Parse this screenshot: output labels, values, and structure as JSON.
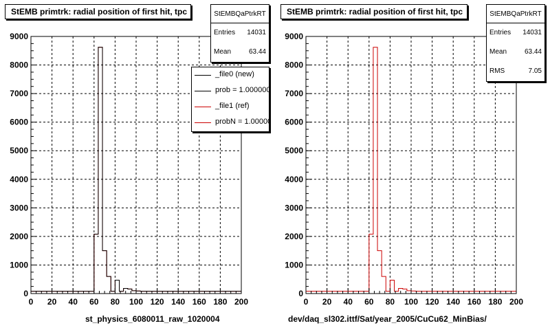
{
  "left_pad": {
    "title": "StEMB primtrk: radial position of first hit, tpc",
    "stats": {
      "name": "StEMBQaPtrkRT",
      "entries_label": "Entries",
      "entries_value": "14031",
      "mean_label": "Mean",
      "mean_value": "63.44"
    },
    "legend": [
      {
        "text": "_file0 (new)",
        "color": "#000000"
      },
      {
        "text": "prob = 1.000000",
        "color": "#000000"
      },
      {
        "text": "_file1 (ref)",
        "color": "#cc0000"
      },
      {
        "text": "probN = 1.000000",
        "color": "#cc0000"
      }
    ],
    "caption": "st_physics_6080011_raw_1020004"
  },
  "right_pad": {
    "title": "StEMB primtrk: radial position of first hit, tpc",
    "stats": {
      "name": "StEMBQaPtrkRT",
      "entries_label": "Entries",
      "entries_value": "14031",
      "mean_label": "Mean",
      "mean_value": "63.44",
      "rms_label": "RMS",
      "rms_value": "7.05"
    },
    "caption": "dev/daq_sl302.ittf/Sat/year_2005/CuCu62_MinBias/"
  },
  "chart_data": [
    {
      "type": "histogram",
      "title": "StEMB primtrk: radial position of first hit, tpc",
      "xlim": [
        0,
        200
      ],
      "ylim": [
        0,
        9000
      ],
      "xticks": [
        0,
        20,
        40,
        60,
        80,
        100,
        120,
        140,
        160,
        180,
        200
      ],
      "yticks": [
        0,
        1000,
        2000,
        3000,
        4000,
        5000,
        6000,
        7000,
        8000,
        9000
      ],
      "grid": true,
      "bin_width": 4,
      "bin_edges_start": 0,
      "series": [
        {
          "name": "_file1 (ref)",
          "color": "#cc0000",
          "values": [
            80,
            80,
            80,
            80,
            80,
            80,
            80,
            80,
            80,
            80,
            80,
            80,
            80,
            80,
            80,
            2080,
            8620,
            1500,
            600,
            80,
            470,
            80,
            180,
            160,
            100,
            90,
            80,
            80,
            80,
            80,
            80,
            80,
            80,
            80,
            80,
            80,
            80,
            80,
            80,
            80,
            80,
            80,
            80,
            80,
            80,
            80,
            80,
            80,
            80,
            80
          ]
        },
        {
          "name": "_file0 (new)",
          "color": "#000000",
          "values": [
            80,
            80,
            80,
            80,
            80,
            80,
            80,
            80,
            80,
            80,
            80,
            80,
            80,
            80,
            80,
            2080,
            8620,
            1500,
            600,
            80,
            470,
            80,
            180,
            160,
            100,
            90,
            80,
            80,
            80,
            80,
            80,
            80,
            80,
            80,
            80,
            80,
            80,
            80,
            80,
            80,
            80,
            80,
            80,
            80,
            80,
            80,
            80,
            80,
            80,
            80
          ]
        }
      ]
    },
    {
      "type": "histogram",
      "title": "StEMB primtrk: radial position of first hit, tpc",
      "xlim": [
        0,
        200
      ],
      "ylim": [
        0,
        9000
      ],
      "xticks": [
        0,
        20,
        40,
        60,
        80,
        100,
        120,
        140,
        160,
        180,
        200
      ],
      "yticks": [
        0,
        1000,
        2000,
        3000,
        4000,
        5000,
        6000,
        7000,
        8000,
        9000
      ],
      "grid": true,
      "bin_width": 4,
      "bin_edges_start": 0,
      "series": [
        {
          "name": "",
          "color": "#cc0000",
          "values": [
            80,
            80,
            80,
            80,
            80,
            80,
            80,
            80,
            80,
            80,
            80,
            80,
            80,
            80,
            80,
            2080,
            8620,
            1500,
            600,
            80,
            470,
            80,
            180,
            160,
            100,
            90,
            80,
            80,
            80,
            80,
            80,
            80,
            80,
            80,
            80,
            80,
            80,
            80,
            80,
            80,
            80,
            80,
            80,
            80,
            80,
            80,
            80,
            80,
            80,
            80
          ]
        }
      ]
    }
  ]
}
